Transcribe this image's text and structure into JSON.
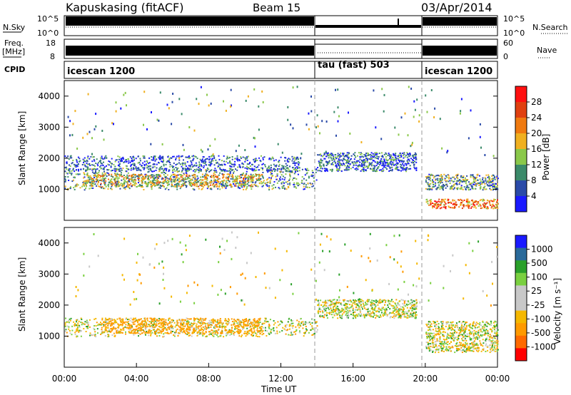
{
  "header": {
    "station": "Kapuskasing (fitACF)",
    "beam": "Beam 15",
    "date": "03/Apr/2014"
  },
  "noise_panel": {
    "left_label": "N.Sky",
    "right_label": "N.Search",
    "ticks_left": [
      "10^5",
      "10^0"
    ],
    "ticks_right": [
      "10^5",
      "10^0"
    ]
  },
  "freq_panel": {
    "left_label_1": "Freq.",
    "left_label_2": "[MHz]",
    "right_label": "Nave",
    "ticks_left": [
      "18",
      "8"
    ],
    "ticks_right": [
      "60",
      "0"
    ]
  },
  "cpid_panel": {
    "label": "CPID",
    "segments": [
      {
        "name": "icescan 1200",
        "start_hour": 0,
        "end_hour": 14
      },
      {
        "name": "tau (fast) 503",
        "start_hour": 14,
        "end_hour": 20
      },
      {
        "name": "icescan 1200",
        "start_hour": 20,
        "end_hour": 24
      }
    ]
  },
  "colors": {
    "power": [
      "#1a1aff",
      "#2a4aa8",
      "#3b8a6a",
      "#8ac84a",
      "#f0b020",
      "#f07a10",
      "#e04010",
      "#ff1010"
    ],
    "velocity": [
      "#ff0000",
      "#ff6a00",
      "#ff9a00",
      "#f5b800",
      "#c8c8c8",
      "#c8c8c8",
      "#7ad040",
      "#2aa02a",
      "#2a6a9a",
      "#1a1aff"
    ]
  },
  "chart_data": [
    {
      "type": "heatmap",
      "name": "power",
      "ylabel": "Slant Range [km]",
      "colorbar_label": "Power [dB]",
      "colorbar_ticks": [
        "4",
        "8",
        "12",
        "16",
        "20",
        "24",
        "28"
      ],
      "yticks": [
        "1000",
        "2000",
        "3000",
        "4000"
      ],
      "xlim": [
        0,
        24
      ],
      "ylim": [
        0,
        4500
      ],
      "bands": [
        {
          "t0": 0,
          "t1": 14,
          "r0": 1000,
          "r1": 1700,
          "value": 10
        },
        {
          "t0": 1,
          "t1": 11,
          "r0": 1100,
          "r1": 1500,
          "value": 16
        },
        {
          "t0": 0,
          "t1": 13,
          "r0": 1600,
          "r1": 2100,
          "value": 6
        },
        {
          "t0": 14,
          "t1": 19.5,
          "r0": 1600,
          "r1": 2200,
          "value": 7
        },
        {
          "t0": 20,
          "t1": 24,
          "r0": 1000,
          "r1": 1500,
          "value": 11
        },
        {
          "t0": 20,
          "t1": 24,
          "r0": 400,
          "r1": 700,
          "value": 22
        }
      ]
    },
    {
      "type": "heatmap",
      "name": "velocity",
      "xlabel": "Time UT",
      "ylabel": "Slant Range [km]",
      "colorbar_label": "Velocity [m s⁻¹]",
      "colorbar_ticks": [
        "1000",
        "500",
        "100",
        "25",
        "-25",
        "-100",
        "-500",
        "-1000"
      ],
      "xticks": [
        "00:00",
        "04:00",
        "08:00",
        "12:00",
        "16:00",
        "20:00",
        "00:00"
      ],
      "yticks": [
        "1000",
        "2000",
        "3000",
        "4000"
      ],
      "xlim": [
        0,
        24
      ],
      "ylim": [
        0,
        4500
      ],
      "bands": [
        {
          "t0": 0,
          "t1": 14,
          "r0": 1000,
          "r1": 1600,
          "value": 0
        },
        {
          "t0": 2,
          "t1": 11,
          "r0": 1100,
          "r1": 1600,
          "value": -150
        },
        {
          "t0": 14,
          "t1": 19.5,
          "r0": 1600,
          "r1": 2200,
          "value": 0
        },
        {
          "t0": 20,
          "t1": 24,
          "r0": 500,
          "r1": 1500,
          "value": 0
        }
      ]
    }
  ]
}
